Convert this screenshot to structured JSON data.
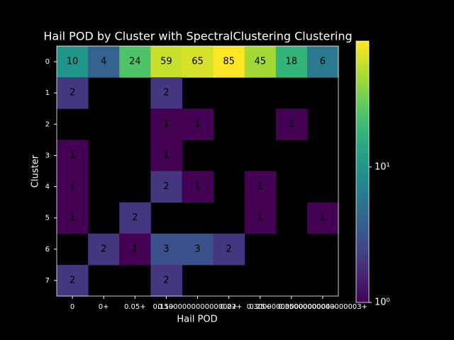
{
  "chart_data": {
    "type": "heatmap",
    "title": "Hail POD by Cluster with SpectralClustering Clustering",
    "x_label": "Hail POD",
    "y_label": "Cluster",
    "x": [
      "0",
      "0+",
      "0.05+",
      "0.1+",
      "0.15000000000000002+",
      "0.2+",
      "0.25+",
      "0.30000000000000004+",
      "0.35000000000000003+"
    ],
    "y": [
      "0",
      "1",
      "2",
      "3",
      "4",
      "5",
      "6",
      "7"
    ],
    "values": [
      [
        10,
        4,
        24,
        59,
        65,
        85,
        45,
        18,
        6
      ],
      [
        2,
        null,
        null,
        2,
        null,
        null,
        null,
        null,
        null
      ],
      [
        null,
        null,
        null,
        1,
        1,
        null,
        null,
        1,
        null
      ],
      [
        1,
        null,
        null,
        1,
        null,
        null,
        null,
        null,
        null
      ],
      [
        1,
        null,
        null,
        2,
        1,
        null,
        1,
        null,
        null
      ],
      [
        1,
        null,
        2,
        null,
        null,
        null,
        1,
        null,
        1
      ],
      [
        null,
        2,
        1,
        3,
        3,
        2,
        null,
        null,
        null
      ],
      [
        2,
        null,
        null,
        2,
        null,
        null,
        null,
        null,
        null
      ]
    ],
    "colormap": "viridis",
    "log_scale": true,
    "zlim": [
      1,
      85
    ],
    "zticks": [
      {
        "value": 1,
        "label": "10⁰"
      },
      {
        "value": 10,
        "label": "10¹"
      }
    ]
  }
}
